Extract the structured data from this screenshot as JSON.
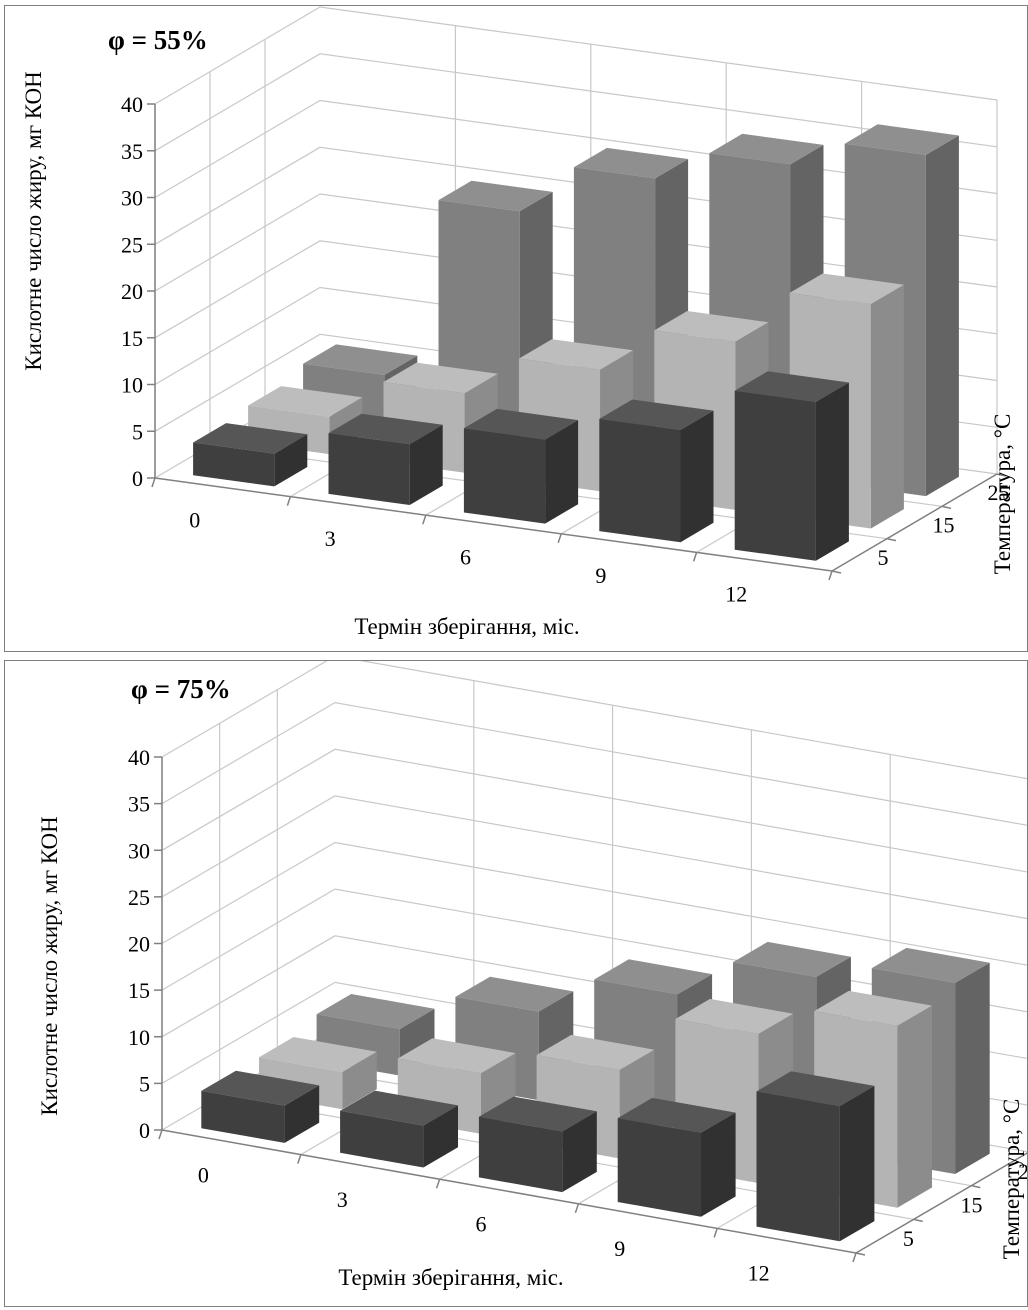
{
  "chart_data": [
    {
      "type": "bar3d",
      "title": "φ = 55%",
      "xlabel": "Термін зберігання, міс.",
      "ylabel": "Кислотне число жиру, мг КОН",
      "zlabel": "Температура, °С",
      "categories": [
        "0",
        "3",
        "6",
        "9",
        "12"
      ],
      "yticks": [
        "0",
        "5",
        "10",
        "15",
        "20",
        "25",
        "30",
        "35",
        "40"
      ],
      "ylim": [
        0,
        40
      ],
      "series": [
        {
          "name": "5",
          "color": "#3f3f3f",
          "values": [
            3.5,
            6.5,
            9,
            12,
            17
          ]
        },
        {
          "name": "15",
          "color": "#b4b4b4",
          "values": [
            4,
            8.5,
            13,
            18,
            24
          ]
        },
        {
          "name": "25",
          "color": "#808080",
          "values": [
            5,
            24.5,
            30,
            33.5,
            36.5
          ]
        }
      ],
      "grid": true
    },
    {
      "type": "bar3d",
      "title": "φ = 75%",
      "xlabel": "Термін зберігання, міс.",
      "ylabel": "Кислотне число жиру, мг КОН",
      "zlabel": "Температура, °С",
      "categories": [
        "0",
        "3",
        "6",
        "9",
        "12"
      ],
      "yticks": [
        "0",
        "5",
        "10",
        "15",
        "20",
        "25",
        "30",
        "35",
        "40"
      ],
      "ylim": [
        0,
        40
      ],
      "series": [
        {
          "name": "5",
          "color": "#3f3f3f",
          "values": [
            4,
            4.5,
            6.5,
            9,
            14.5
          ]
        },
        {
          "name": "15",
          "color": "#b4b4b4",
          "values": [
            4,
            6.5,
            9.5,
            16,
            19.5
          ]
        },
        {
          "name": "25",
          "color": "#808080",
          "values": [
            5,
            9.5,
            14,
            18.5,
            20.5
          ]
        }
      ],
      "grid": true
    }
  ]
}
